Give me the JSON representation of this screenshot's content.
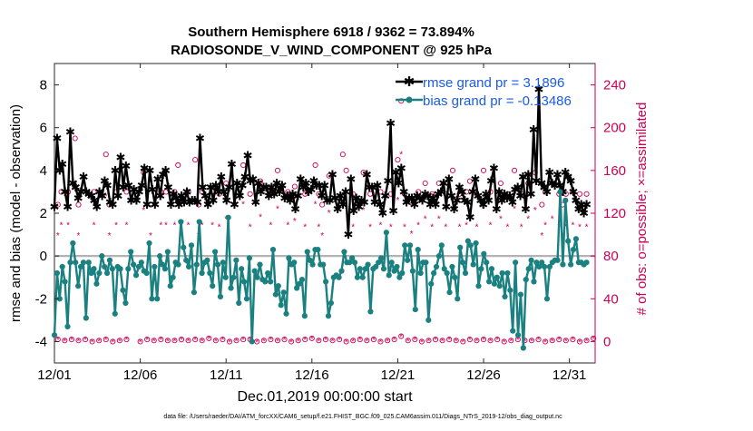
{
  "chart_data": {
    "type": "line",
    "title": [
      "Southern Hemisphere 6918 / 9362 = 73.894%",
      "RADIOSONDE_V_WIND_COMPONENT @ 925 hPa"
    ],
    "xlabel": "Dec.01,2019 00:00:00 start",
    "ylabel_left": "rmse and bias (model - observation)",
    "ylabel_right": "# of obs: o=possible; ×=assimilated",
    "footer": "data file: /Users/raeder/DAI/ATM_forcXX/CAM6_setup/f.e21.FHIST_BGC.f09_025.CAM6assim.011/Diags_NTrS_2019-12/obs_diag_output.nc",
    "x_range": [
      0,
      31.5
    ],
    "ylim_left": [
      -5,
      9
    ],
    "ylim_right": [
      -20,
      260
    ],
    "xticks": [
      {
        "x": 0,
        "label": "12/01"
      },
      {
        "x": 5,
        "label": "12/06"
      },
      {
        "x": 10,
        "label": "12/11"
      },
      {
        "x": 15,
        "label": "12/16"
      },
      {
        "x": 20,
        "label": "12/21"
      },
      {
        "x": 25,
        "label": "12/26"
      },
      {
        "x": 30,
        "label": "12/31"
      }
    ],
    "yticks_left": [
      -4,
      -2,
      0,
      2,
      4,
      6,
      8
    ],
    "yticks_right": [
      0,
      40,
      80,
      120,
      160,
      200,
      240
    ],
    "zero_line": 0,
    "series": [
      {
        "name": "rmse grand pr = 3.1896",
        "color": "#000000",
        "axis": "left",
        "marker": "star",
        "values": [
          2.3,
          5.5,
          4.0,
          4.3,
          3.0,
          2.3,
          5.8,
          3.4,
          3.2,
          2.7,
          3.0,
          3.7,
          3.0,
          2.9,
          2.8,
          2.6,
          2.3,
          3.0,
          2.8,
          3.5,
          3.3,
          2.5,
          2.4,
          4.0,
          2.8,
          4.6,
          3.2,
          4.2,
          3.3,
          2.6,
          3.1,
          2.6,
          3.0,
          3.3,
          4.1,
          2.4,
          4.0,
          3.1,
          2.4,
          3.6,
          2.8,
          3.8,
          4.0,
          3.2,
          2.4,
          2.9,
          2.7,
          2.4,
          2.8,
          2.5,
          3.0,
          2.5,
          2.6,
          2.6,
          2.5,
          5.5,
          3.2,
          2.8,
          2.4,
          3.2,
          2.6,
          3.3,
          3.0,
          3.7,
          3.0,
          2.6,
          3.2,
          4.3,
          2.4,
          3.4,
          2.8,
          3.3,
          3.7,
          4.7,
          3.5,
          3.6,
          2.5,
          3.4,
          3.0,
          3.2,
          3.2,
          2.8,
          3.2,
          2.9,
          3.4,
          3.0,
          3.3,
          2.7,
          2.8,
          2.6,
          2.9,
          2.2,
          2.8,
          3.6,
          3.2,
          3.4,
          3.0,
          3.1,
          3.5,
          3.3,
          3.3,
          2.8,
          3.3,
          2.6,
          2.6,
          3.8,
          2.7,
          2.2,
          2.8,
          2.4,
          3.0,
          1.0,
          3.6,
          2.1,
          2.7,
          2.3,
          2.6,
          2.5,
          3.8,
          3.2,
          3.2,
          2.5,
          3.3,
          2.4,
          2.0,
          2.8,
          3.5,
          6.2,
          2.1,
          3.9,
          3.4,
          4.1,
          3.0,
          2.5,
          2.7,
          2.7,
          2.4,
          2.8,
          2.7,
          2.6,
          2.9,
          2.8,
          2.4,
          2.7,
          2.4,
          2.9,
          3.0,
          3.4,
          2.3,
          3.6,
          2.8,
          2.2,
          2.6,
          3.2,
          3.0,
          2.6,
          2.5,
          1.8,
          3.0,
          3.6,
          2.8,
          2.6,
          2.4,
          2.9,
          2.6,
          3.5,
          4.1,
          2.2,
          3.0,
          2.6,
          2.9,
          2.7,
          2.8,
          2.5,
          3.1,
          3.2,
          2.8,
          3.7,
          2.2,
          3.8,
          2.9,
          5.9,
          3.5,
          7.8,
          3.4,
          3.2,
          3.0,
          3.9,
          3.4,
          3.3,
          3.8,
          3.3,
          3.0,
          3.9,
          3.7,
          3.5,
          3.0,
          2.6,
          2.2,
          2.4,
          2.0,
          2.4
        ]
      },
      {
        "name": "bias grand pr = -0.13486",
        "color": "#1a8080",
        "axis": "left",
        "marker": "circle",
        "values": [
          -3.7,
          -0.8,
          -2.0,
          -0.5,
          -1.2,
          -3.3,
          -0.3,
          0.6,
          -0.3,
          -1.4,
          -0.5,
          -0.3,
          -2.9,
          -0.3,
          -0.8,
          -0.6,
          -1.3,
          -0.8,
          0.0,
          -0.5,
          -0.8,
          -0.2,
          -0.6,
          -2.7,
          -0.5,
          -0.6,
          -1.6,
          -2.2,
          -0.6,
          0.2,
          -0.4,
          -0.9,
          -0.5,
          -0.3,
          -0.7,
          -0.8,
          0.6,
          -2.0,
          -0.5,
          -2.0,
          0.0,
          -0.4,
          -0.6,
          0.2,
          -1.4,
          -1.0,
          -0.3,
          -0.4,
          1.6,
          0.4,
          -0.2,
          -0.5,
          0.5,
          -1.7,
          -0.4,
          1.6,
          -0.8,
          -0.3,
          -0.2,
          -0.8,
          -1.4,
          0.2,
          -0.4,
          -1.9,
          -0.3,
          -1.0,
          1.8,
          -1.5,
          -1.0,
          -0.2,
          -2.2,
          -0.6,
          -1.2,
          -2.0,
          -0.1,
          -4.0,
          -0.7,
          -1.0,
          -0.4,
          -1.1,
          -1.2,
          -0.8,
          -1.2,
          0.3,
          -1.8,
          -1.4,
          -2.3,
          -1.7,
          -2.7,
          -0.1,
          -0.4,
          -0.3,
          -1.5,
          -1.3,
          -1.1,
          -2.8,
          0.2,
          -0.2,
          -0.4,
          0.3,
          0.3,
          -0.4,
          -0.4,
          -1.2,
          -2.8,
          -2.2,
          -1.0,
          -0.9,
          -1.0,
          -0.7,
          0.2,
          -0.3,
          -0.3,
          -0.1,
          -0.3,
          -1.0,
          -0.6,
          -1.0,
          -0.6,
          -0.4,
          -2.6,
          -0.6,
          -0.5,
          -0.3,
          -0.1,
          -0.6,
          1.1,
          -0.9,
          -0.3,
          -0.7,
          -0.5,
          -1.0,
          -0.8,
          0.5,
          -0.2,
          0.5,
          -0.7,
          -2.5,
          0.3,
          -0.8,
          -0.3,
          -0.3,
          -3.0,
          -1.3,
          -0.8,
          -0.5,
          0.0,
          0.5,
          -0.6,
          -0.8,
          -1.7,
          -0.5,
          -1.0,
          -2.0,
          0.4,
          -0.3,
          -0.8,
          0.7,
          0.5,
          -0.4,
          0.6,
          -1.4,
          -0.6,
          0.1,
          -0.3,
          -1.2,
          -0.6,
          -1.3,
          -1.0,
          -1.4,
          -0.8,
          -1.9,
          -0.8,
          -1.6,
          -3.5,
          -0.3,
          -3.7,
          -1.8,
          -4.3,
          -1.1,
          -0.6,
          -0.2,
          -1.2,
          -0.3,
          -0.5,
          -0.3,
          -0.5,
          -2.0,
          -0.5,
          -0.3,
          -0.2,
          -0.2,
          3.0,
          -0.4,
          2.6,
          0.7,
          -0.4,
          0.3,
          0.8,
          -0.3,
          -0.3,
          -0.4,
          -0.3
        ]
      }
    ],
    "obs_possible": {
      "color": "#cc0055",
      "marker": "o",
      "day_pattern": [
        1,
        60,
        2,
        128,
        8,
        0,
        3,
        100
      ],
      "peaks": [
        [
          0.2,
          128
        ],
        [
          0.4,
          140
        ],
        [
          0.8,
          140
        ],
        [
          1.2,
          190
        ],
        [
          1.4,
          128
        ],
        [
          2.3,
          140
        ],
        [
          3.0,
          175
        ],
        [
          3.2,
          128
        ],
        [
          3.6,
          140
        ],
        [
          4.2,
          140
        ],
        [
          5.2,
          158
        ],
        [
          5.6,
          128
        ],
        [
          6.2,
          140
        ],
        [
          6.5,
          140
        ],
        [
          7.0,
          140
        ],
        [
          7.2,
          165
        ],
        [
          7.8,
          140
        ],
        [
          8.2,
          170
        ],
        [
          8.4,
          128
        ],
        [
          8.6,
          140
        ],
        [
          9.2,
          140
        ],
        [
          9.6,
          138
        ],
        [
          10.0,
          148
        ],
        [
          11.0,
          165
        ],
        [
          11.4,
          138
        ],
        [
          12.0,
          150
        ],
        [
          12.6,
          140
        ],
        [
          13.0,
          160
        ],
        [
          13.6,
          140
        ],
        [
          14.0,
          145
        ],
        [
          14.6,
          138
        ],
        [
          15.2,
          165
        ],
        [
          15.4,
          138
        ],
        [
          15.6,
          128
        ],
        [
          16.0,
          155
        ],
        [
          16.8,
          175
        ],
        [
          17.0,
          160
        ],
        [
          17.4,
          138
        ],
        [
          18.0,
          158
        ],
        [
          18.4,
          138
        ],
        [
          19.0,
          140
        ],
        [
          19.6,
          138
        ],
        [
          20.0,
          170
        ],
        [
          20.2,
          225
        ],
        [
          20.4,
          138
        ],
        [
          20.8,
          130
        ],
        [
          21.2,
          140
        ],
        [
          21.6,
          148
        ],
        [
          22.0,
          138
        ],
        [
          22.4,
          148
        ],
        [
          22.8,
          138
        ],
        [
          23.2,
          160
        ],
        [
          23.6,
          138
        ],
        [
          24.0,
          140
        ],
        [
          24.2,
          150
        ],
        [
          24.6,
          138
        ],
        [
          25.0,
          160
        ],
        [
          25.4,
          140
        ],
        [
          26.0,
          148
        ],
        [
          26.4,
          138
        ],
        [
          26.8,
          160
        ],
        [
          27.2,
          138
        ],
        [
          27.6,
          148
        ],
        [
          28.0,
          158
        ],
        [
          28.4,
          128
        ],
        [
          28.6,
          140
        ],
        [
          29.0,
          148
        ],
        [
          29.4,
          138
        ],
        [
          29.6,
          128
        ],
        [
          29.8,
          138
        ],
        [
          30.2,
          140
        ],
        [
          30.6,
          138
        ],
        [
          31.0,
          138
        ]
      ],
      "baseline_x": [
        0.2,
        0.6,
        1.0,
        1.4,
        1.8,
        2.2,
        2.6,
        3.0,
        3.4,
        3.8,
        4.2,
        5.0,
        5.4,
        5.8,
        6.2,
        6.6,
        7.0,
        7.4,
        7.8,
        8.2,
        8.6,
        9.0,
        9.4,
        9.8,
        10.2,
        10.6,
        11.0,
        11.4,
        11.8,
        12.2,
        12.6,
        13.0,
        13.4,
        13.8,
        14.2,
        14.6,
        15.0,
        15.4,
        15.8,
        16.2,
        16.6,
        17.0,
        17.4,
        17.8,
        18.2,
        18.6,
        19.0,
        19.4,
        19.8,
        20.2,
        20.6,
        21.0,
        21.4,
        21.8,
        22.2,
        22.6,
        23.0,
        23.4,
        23.8,
        24.2,
        24.6,
        25.0,
        25.4,
        25.8,
        26.2,
        26.6,
        27.0,
        27.4,
        27.8,
        28.2,
        28.6,
        29.0,
        29.4,
        29.8,
        30.2,
        30.6,
        31.0,
        31.4
      ],
      "baseline_y": [
        2,
        1,
        2,
        1,
        2,
        0,
        1,
        2,
        0,
        1,
        2,
        0,
        2,
        1,
        2,
        1,
        1,
        2,
        1,
        2,
        1,
        3,
        1,
        2,
        0,
        1,
        2,
        2,
        0,
        1,
        2,
        1,
        2,
        0,
        1,
        2,
        3,
        1,
        2,
        1,
        2,
        0,
        1,
        2,
        1,
        2,
        0,
        1,
        2,
        5,
        1,
        2,
        0,
        1,
        2,
        1,
        2,
        1,
        0,
        2,
        1,
        2,
        1,
        2,
        0,
        1,
        2,
        1,
        1,
        2,
        0,
        1,
        2,
        1,
        2,
        0,
        1,
        3
      ]
    },
    "obs_assimilated": {
      "color": "#cc0055",
      "marker": "*"
    }
  }
}
